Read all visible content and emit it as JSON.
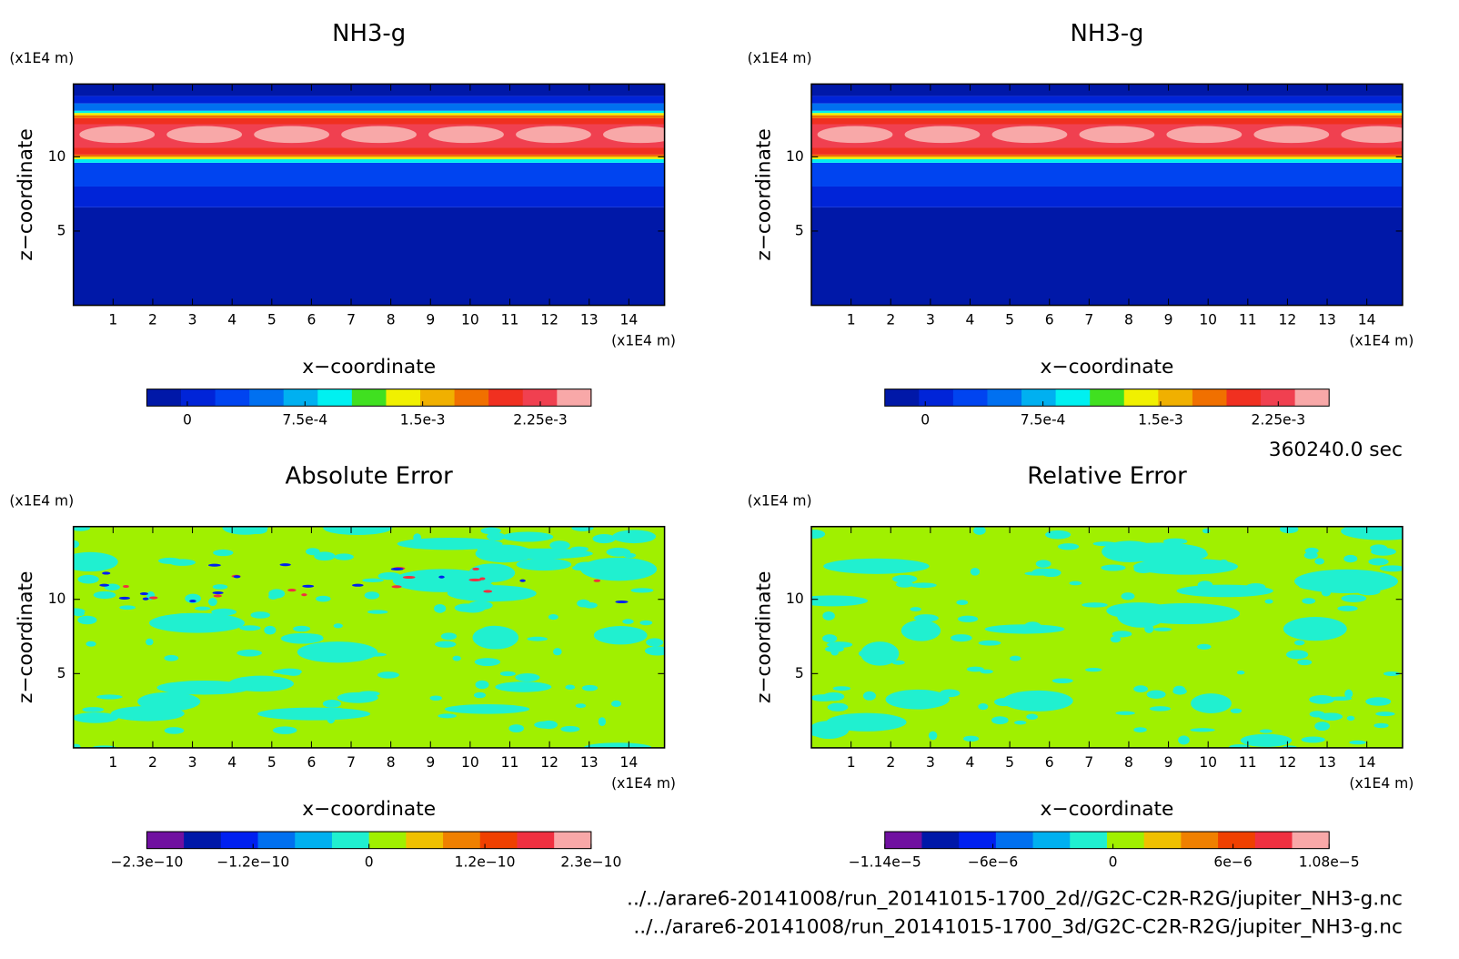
{
  "chart_data": [
    {
      "type": "contour",
      "title": "NH3-g",
      "xlabel": "x−coordinate",
      "ylabel": "z−coordinate",
      "x_unit": "(x1E4 m)",
      "y_unit": "(x1E4 m)",
      "xlim": [
        0,
        14.9
      ],
      "ylim": [
        0,
        14.9
      ],
      "xticks": [
        1,
        2,
        3,
        4,
        5,
        6,
        7,
        8,
        9,
        10,
        11,
        12,
        13,
        14
      ],
      "yticks": [
        5,
        10
      ],
      "clim": [
        -0.000258,
        0.002574
      ],
      "cticks": [
        0,
        {
          "value": 0.00075,
          "label": "7.5e-4"
        },
        {
          "value": 0.0015,
          "label": "1.5e-3"
        },
        {
          "value": 0.00225,
          "label": "2.25e-3"
        }
      ],
      "colors": [
        "#0018a8",
        "#0024d8",
        "#0044f0",
        "#0070f0",
        "#00b0f0",
        "#00f0f0",
        "#40e020",
        "#f0f000",
        "#f0b000",
        "#f07000",
        "#f03020",
        "#f04050",
        "#f8a8a8"
      ]
    },
    {
      "type": "contour",
      "title": "NH3-g",
      "xlabel": "x−coordinate",
      "ylabel": "z−coordinate",
      "x_unit": "(x1E4 m)",
      "y_unit": "(x1E4 m)",
      "xlim": [
        0,
        14.9
      ],
      "ylim": [
        0,
        14.9
      ],
      "xticks": [
        1,
        2,
        3,
        4,
        5,
        6,
        7,
        8,
        9,
        10,
        11,
        12,
        13,
        14
      ],
      "yticks": [
        5,
        10
      ],
      "clim": [
        -0.000258,
        0.002574
      ],
      "cticks": [
        0,
        {
          "value": 0.00075,
          "label": "7.5e-4"
        },
        {
          "value": 0.0015,
          "label": "1.5e-3"
        },
        {
          "value": 0.00225,
          "label": "2.25e-3"
        }
      ],
      "colors": [
        "#0018a8",
        "#0024d8",
        "#0044f0",
        "#0070f0",
        "#00b0f0",
        "#00f0f0",
        "#40e020",
        "#f0f000",
        "#f0b000",
        "#f07000",
        "#f03020",
        "#f04050",
        "#f8a8a8"
      ]
    },
    {
      "type": "contour",
      "title": "Absolute Error",
      "xlabel": "x−coordinate",
      "ylabel": "z−coordinate",
      "x_unit": "(x1E4 m)",
      "y_unit": "(x1E4 m)",
      "xlim": [
        0,
        14.9
      ],
      "ylim": [
        0,
        14.9
      ],
      "xticks": [
        1,
        2,
        3,
        4,
        5,
        6,
        7,
        8,
        9,
        10,
        11,
        12,
        13,
        14
      ],
      "yticks": [
        5,
        10
      ],
      "clim": [
        -2.3e-10,
        2.3e-10
      ],
      "cticks": [
        {
          "value": -2.3e-10,
          "label": "−2.3e−10"
        },
        {
          "value": -1.2e-10,
          "label": "−1.2e−10"
        },
        0,
        {
          "value": 1.2e-10,
          "label": "1.2e−10"
        },
        {
          "value": 2.3e-10,
          "label": "2.3e−10"
        }
      ],
      "colors": [
        "#7010a0",
        "#0018a8",
        "#0020f0",
        "#0070f0",
        "#00b0f0",
        "#20f0d0",
        "#a0f000",
        "#f0c000",
        "#f08000",
        "#f04000",
        "#f03040",
        "#f8a8a8"
      ]
    },
    {
      "type": "contour",
      "title": "Relative Error",
      "xlabel": "x−coordinate",
      "ylabel": "z−coordinate",
      "x_unit": "(x1E4 m)",
      "y_unit": "(x1E4 m)",
      "xlim": [
        0,
        14.9
      ],
      "ylim": [
        0,
        14.9
      ],
      "xticks": [
        1,
        2,
        3,
        4,
        5,
        6,
        7,
        8,
        9,
        10,
        11,
        12,
        13,
        14
      ],
      "yticks": [
        5,
        10
      ],
      "clim": [
        -1.14e-05,
        1.08e-05
      ],
      "cticks": [
        {
          "value": -1.14e-05,
          "label": "−1.14e−5"
        },
        {
          "value": -6e-06,
          "label": "−6e−6"
        },
        0,
        {
          "value": 6e-06,
          "label": "6e−6"
        },
        {
          "value": 1.08e-05,
          "label": "1.08e−5"
        }
      ],
      "colors": [
        "#7010a0",
        "#0018a8",
        "#0020f0",
        "#0070f0",
        "#00b0f0",
        "#20f0d0",
        "#a0f000",
        "#f0c000",
        "#f08000",
        "#f04000",
        "#f03040",
        "#f8a8a8"
      ]
    }
  ],
  "footer": {
    "time": "360240.0 sec",
    "files": [
      "../../arare6-20141008/run_20141015-1700_2d//G2C-C2R-R2G/jupiter_NH3-g.nc",
      "../../arare6-20141008/run_20141015-1700_3d/G2C-C2R-R2G/jupiter_NH3-g.nc"
    ]
  }
}
